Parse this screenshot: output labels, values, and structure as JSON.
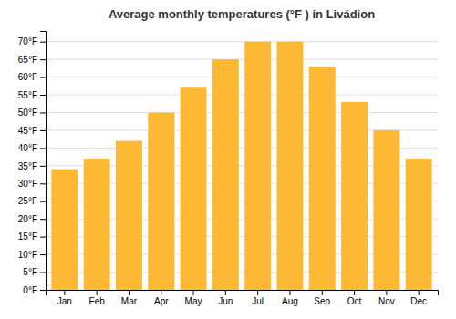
{
  "chart_data": {
    "type": "bar",
    "title": "Average monthly temperatures (°F ) in Livádion",
    "categories": [
      "Jan",
      "Feb",
      "Mar",
      "Apr",
      "May",
      "Jun",
      "Jul",
      "Aug",
      "Sep",
      "Oct",
      "Nov",
      "Dec"
    ],
    "values": [
      34,
      37,
      42,
      50,
      57,
      65,
      70,
      70,
      63,
      53,
      45,
      37
    ],
    "color": "#FDB933",
    "ylim": [
      0,
      73
    ],
    "yticks": [
      {
        "value": 0,
        "label": "0°F"
      },
      {
        "value": 5,
        "label": "5°F"
      },
      {
        "value": 10,
        "label": "10°F"
      },
      {
        "value": 15,
        "label": "15°F"
      },
      {
        "value": 20,
        "label": "20°F"
      },
      {
        "value": 25,
        "label": "25°F"
      },
      {
        "value": 30,
        "label": "30°F"
      },
      {
        "value": 35,
        "label": "35°F"
      },
      {
        "value": 40,
        "label": "40°F"
      },
      {
        "value": 45,
        "label": "45°F"
      },
      {
        "value": 50,
        "label": "50°F"
      },
      {
        "value": 55,
        "label": "55°F"
      },
      {
        "value": 60,
        "label": "60°F"
      },
      {
        "value": 65,
        "label": "65°F"
      },
      {
        "value": 70,
        "label": "70°F"
      }
    ],
    "grid": true
  }
}
